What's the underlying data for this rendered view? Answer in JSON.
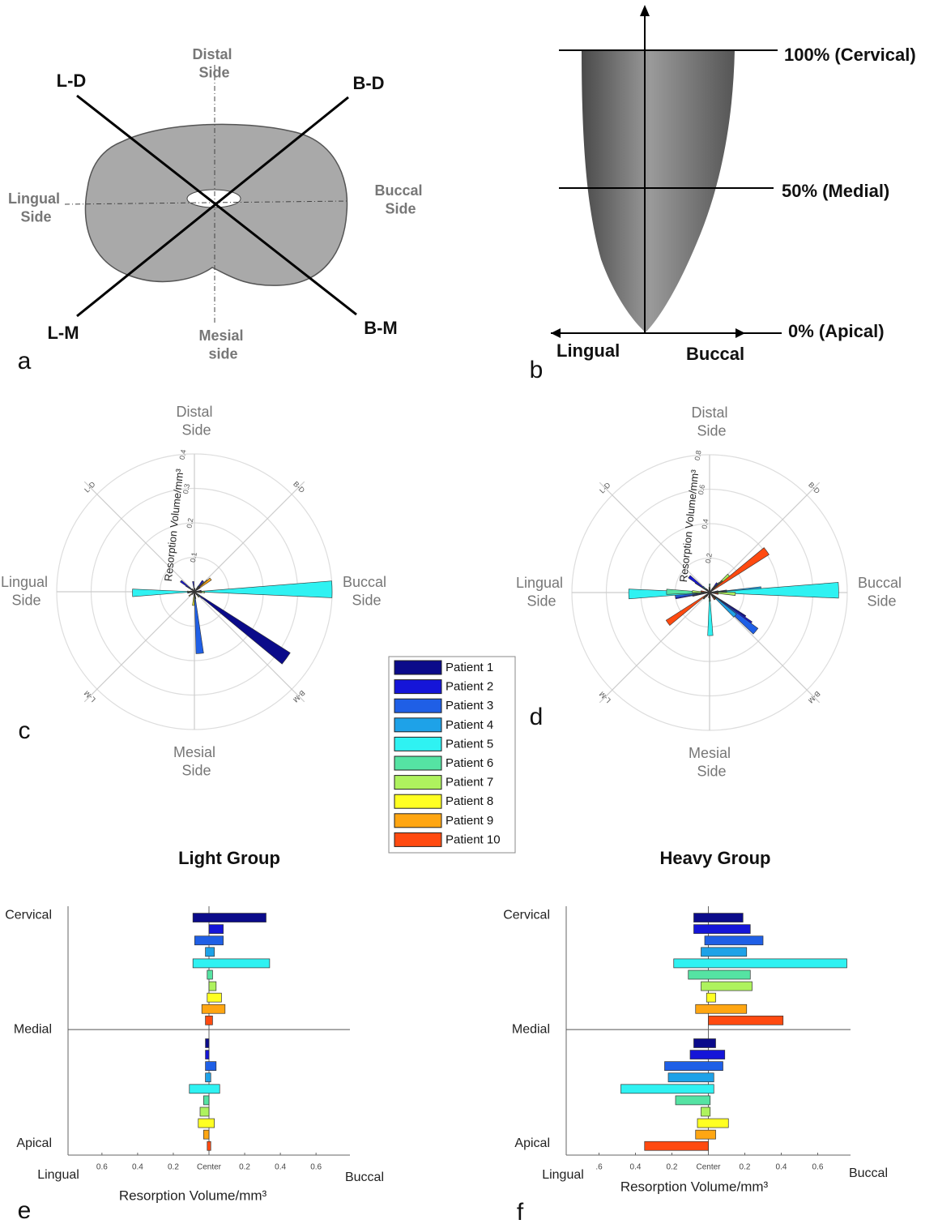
{
  "panel_a": {
    "label": "a",
    "distal": "Distal Side",
    "ld": "L-D",
    "bd": "B-D",
    "lingual": "Lingual Side",
    "buccal": "Buccal Side",
    "lm": "L-M",
    "bm": "B-M",
    "mesial": "Mesial side"
  },
  "panel_b": {
    "label": "b",
    "cervical": "100% (Cervical)",
    "medial": "50% (Medial)",
    "apical": "0% (Apical)",
    "lingual": "Lingual",
    "buccal": "Buccal"
  },
  "legend": {
    "entries": [
      {
        "name": "Patient 1",
        "color": "#0b0b8a"
      },
      {
        "name": "Patient 2",
        "color": "#1515d8"
      },
      {
        "name": "Patient 3",
        "color": "#1f5fe6"
      },
      {
        "name": "Patient 4",
        "color": "#1ea2e8"
      },
      {
        "name": "Patient 5",
        "color": "#2ff2f2"
      },
      {
        "name": "Patient 6",
        "color": "#55e3a3"
      },
      {
        "name": "Patient 7",
        "color": "#aef25e"
      },
      {
        "name": "Patient 8",
        "color": "#ffff22"
      },
      {
        "name": "Patient 9",
        "color": "#ffa612"
      },
      {
        "name": "Patient 10",
        "color": "#ff4a10"
      }
    ]
  },
  "chart_data": [
    {
      "type": "polar-bar",
      "label": "c",
      "r_label": "Resorption Volume/mm³",
      "categories": [
        "Distal Side",
        "B-D",
        "Buccal Side",
        "B-M",
        "Mesial Side",
        "L-M",
        "Lingual Side",
        "L-D"
      ],
      "rlim": [
        0,
        0.4
      ],
      "rticks": [
        0.1,
        0.2,
        0.3,
        0.4
      ],
      "series": [
        {
          "values": [
            0,
            0.02,
            0.02,
            0.33,
            0.02,
            0,
            0.02,
            0.03
          ]
        },
        {
          "values": [
            0.03,
            0.04,
            0.01,
            0.03,
            0.02,
            0,
            0.01,
            0.05
          ]
        },
        {
          "values": [
            0,
            0.02,
            0.01,
            0.02,
            0.18,
            0.01,
            0.01,
            0.02
          ]
        },
        {
          "values": [
            0.01,
            0.01,
            0.01,
            0.01,
            0.02,
            0.01,
            0.01,
            0.01
          ]
        },
        {
          "values": [
            0.01,
            0.01,
            0.4,
            0.01,
            0.01,
            0.01,
            0.18,
            0.01
          ]
        },
        {
          "values": [
            0.01,
            0.02,
            0.02,
            0.01,
            0.01,
            0.01,
            0.02,
            0.01
          ]
        },
        {
          "values": [
            0.01,
            0.04,
            0.03,
            0.01,
            0.02,
            0.01,
            0.02,
            0.01
          ]
        },
        {
          "values": [
            0.01,
            0.05,
            0.02,
            0.02,
            0.04,
            0.01,
            0.01,
            0.01
          ]
        },
        {
          "values": [
            0.01,
            0.06,
            0.02,
            0.01,
            0.01,
            0.02,
            0.01,
            0.01
          ]
        },
        {
          "values": [
            0.01,
            0.02,
            0.01,
            0.01,
            0.01,
            0.01,
            0.01,
            0.01
          ]
        }
      ]
    },
    {
      "type": "polar-bar",
      "label": "d",
      "r_label": "Resorption Volume/mm³",
      "categories": [
        "Distal Side",
        "B-D",
        "Buccal Side",
        "B-M",
        "Mesial Side",
        "L-M",
        "Lingual Side",
        "L-D"
      ],
      "rlim": [
        0,
        0.8
      ],
      "rticks": [
        0.2,
        0.4,
        0.6,
        0.8
      ],
      "series": [
        {
          "values": [
            0.02,
            0.03,
            0.05,
            0.25,
            0.02,
            0.02,
            0.1,
            0.1
          ]
        },
        {
          "values": [
            0.02,
            0.07,
            0.05,
            0.3,
            0.02,
            0.03,
            0.2,
            0.15
          ]
        },
        {
          "values": [
            0.03,
            0.05,
            0.1,
            0.35,
            0.03,
            0.03,
            0.2,
            0.05
          ]
        },
        {
          "values": [
            0.02,
            0.04,
            0.3,
            0.2,
            0.05,
            0.03,
            0.1,
            0.05
          ]
        },
        {
          "values": [
            0.03,
            0.05,
            0.75,
            0.05,
            0.25,
            0.05,
            0.47,
            0.03
          ]
        },
        {
          "values": [
            0.05,
            0.08,
            0.1,
            0.05,
            0.05,
            0.05,
            0.25,
            0.03
          ]
        },
        {
          "values": [
            0.03,
            0.15,
            0.15,
            0.05,
            0.03,
            0.05,
            0.1,
            0.03
          ]
        },
        {
          "values": [
            0.02,
            0.1,
            0.05,
            0.05,
            0.03,
            0.03,
            0.05,
            0.02
          ]
        },
        {
          "values": [
            0.02,
            0.1,
            0.05,
            0.05,
            0.03,
            0.05,
            0.05,
            0.02
          ]
        },
        {
          "values": [
            0.02,
            0.41,
            0.05,
            0.05,
            0.03,
            0.3,
            0.05,
            0.02
          ]
        }
      ]
    },
    {
      "type": "range-bar",
      "label": "e",
      "title": "Light Group",
      "x_label": "Resorption Volume/mm³",
      "x_left_label": "Lingual",
      "x_right_label": "Buccal",
      "xlim": [
        -0.79,
        0.79
      ],
      "xticks": [
        {
          "value": -0.6,
          "label": "0.6"
        },
        {
          "value": -0.4,
          "label": "0.4"
        },
        {
          "value": -0.2,
          "label": "0.2"
        },
        {
          "value": 0,
          "label": "Center"
        },
        0.2,
        0.4,
        0.6
      ],
      "ylim": [
        -5,
        104
      ],
      "yticks": [
        {
          "value": 100,
          "label": "Cervical"
        },
        {
          "value": 50,
          "label": "Medial"
        },
        {
          "value": 0,
          "label": "Apical"
        }
      ],
      "series": [
        {
          "values": [
            [
              -0.09,
              0.32
            ],
            [
              -0.02,
              0
            ]
          ]
        },
        {
          "values": [
            [
              0,
              0.08
            ],
            [
              -0.02,
              0
            ]
          ]
        },
        {
          "values": [
            [
              -0.08,
              0.08
            ],
            [
              -0.02,
              0.04
            ]
          ]
        },
        {
          "values": [
            [
              -0.02,
              0.03
            ],
            [
              -0.02,
              0.01
            ]
          ]
        },
        {
          "values": [
            [
              -0.09,
              0.34
            ],
            [
              -0.11,
              0.06
            ]
          ]
        },
        {
          "values": [
            [
              -0.01,
              0.02
            ],
            [
              -0.03,
              0
            ]
          ]
        },
        {
          "values": [
            [
              0,
              0.04
            ],
            [
              -0.05,
              0
            ]
          ]
        },
        {
          "values": [
            [
              -0.01,
              0.07
            ],
            [
              -0.06,
              0.03
            ]
          ]
        },
        {
          "values": [
            [
              -0.04,
              0.09
            ],
            [
              -0.03,
              0
            ]
          ]
        },
        {
          "values": [
            [
              -0.02,
              0.02
            ],
            [
              -0.01,
              0.01
            ]
          ]
        }
      ]
    },
    {
      "type": "range-bar",
      "label": "f",
      "title": "Heavy Group",
      "x_label": "Resorption Volume/mm³",
      "x_left_label": "Lingual",
      "x_right_label": "Buccal",
      "xlim": [
        -0.78,
        0.78
      ],
      "xticks": [
        {
          "value": -0.6,
          "label": ".6"
        },
        {
          "value": -0.4,
          "label": "0.4"
        },
        {
          "value": -0.2,
          "label": "0.2"
        },
        {
          "value": 0,
          "label": "Center"
        },
        0.2,
        0.4,
        0.6
      ],
      "ylim": [
        -5,
        104
      ],
      "yticks": [
        {
          "value": 100,
          "label": "Cervical"
        },
        {
          "value": 50,
          "label": "Medial"
        },
        {
          "value": 0,
          "label": "Apical"
        }
      ],
      "series": [
        {
          "values": [
            [
              -0.08,
              0.19
            ],
            [
              -0.08,
              0.04
            ]
          ]
        },
        {
          "values": [
            [
              -0.08,
              0.23
            ],
            [
              -0.1,
              0.09
            ]
          ]
        },
        {
          "values": [
            [
              -0.02,
              0.3
            ],
            [
              -0.24,
              0.08
            ]
          ]
        },
        {
          "values": [
            [
              -0.04,
              0.21
            ],
            [
              -0.22,
              0.03
            ]
          ]
        },
        {
          "values": [
            [
              -0.19,
              0.76
            ],
            [
              -0.48,
              0.03
            ]
          ]
        },
        {
          "values": [
            [
              -0.11,
              0.23
            ],
            [
              -0.18,
              0.01
            ]
          ]
        },
        {
          "values": [
            [
              -0.04,
              0.24
            ],
            [
              -0.04,
              0.01
            ]
          ]
        },
        {
          "values": [
            [
              -0.01,
              0.04
            ],
            [
              -0.06,
              0.11
            ]
          ]
        },
        {
          "values": [
            [
              -0.07,
              0.21
            ],
            [
              -0.07,
              0.04
            ]
          ]
        },
        {
          "values": [
            [
              0,
              0.41
            ],
            [
              -0.35,
              0
            ]
          ]
        }
      ]
    }
  ]
}
